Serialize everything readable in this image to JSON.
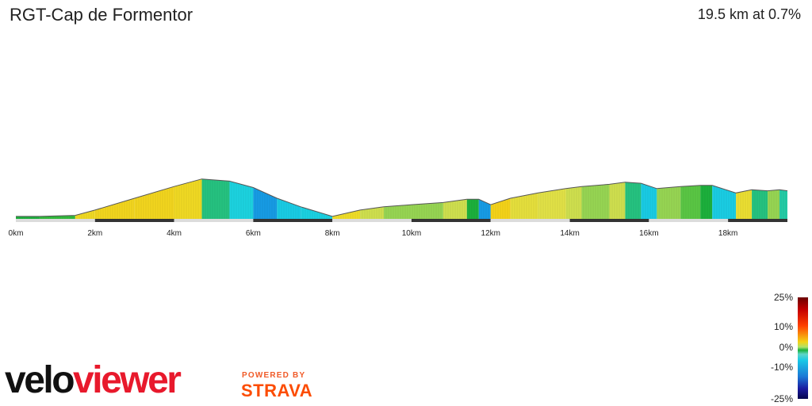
{
  "header": {
    "title": "RGT-Cap de Formentor",
    "summary": "19.5 km at 0.7%"
  },
  "legend": {
    "labels": [
      "25%",
      "10%",
      "0%",
      "-10%",
      "-25%"
    ]
  },
  "branding": {
    "logo_part1": "velo",
    "logo_part2": "viewer",
    "powered_by": "POWERED BY",
    "strava": "STRAVA"
  },
  "chart_data": {
    "type": "area",
    "title": "RGT-Cap de Formentor",
    "xlabel": "",
    "ylabel": "",
    "x_unit": "km",
    "distance_km": 19.5,
    "avg_gradient_pct": 0.7,
    "x_ticks": [
      "0km",
      "2km",
      "4km",
      "6km",
      "8km",
      "10km",
      "12km",
      "14km",
      "16km",
      "18km"
    ],
    "color_scale": {
      "min_pct": -25,
      "max_pct": 25,
      "labels": [
        "25%",
        "10%",
        "0%",
        "-10%",
        "-25%"
      ]
    },
    "profile": {
      "x_km": [
        0,
        0.6,
        1.5,
        2.0,
        3.0,
        4.0,
        4.7,
        5.4,
        6.0,
        6.6,
        7.2,
        8.0,
        8.7,
        9.3,
        10.0,
        10.8,
        11.4,
        11.7,
        12.0,
        12.5,
        13.2,
        13.9,
        14.3,
        15.0,
        15.4,
        15.8,
        16.2,
        16.8,
        17.3,
        17.6,
        18.2,
        18.6,
        19.0,
        19.3,
        19.5
      ],
      "elevation_m": [
        3,
        3,
        4,
        9,
        20,
        31,
        38,
        36,
        30,
        20,
        12,
        3,
        9,
        12,
        14,
        16,
        19,
        19,
        14,
        20,
        25,
        29,
        31,
        33,
        35,
        34,
        29,
        31,
        32,
        32,
        25,
        28,
        27,
        28,
        27
      ]
    },
    "segment_gradient_pct": [
      0,
      0.1,
      1,
      1.1,
      1.1,
      1,
      -0.3,
      -1,
      -1.7,
      -1.3,
      -1.1,
      0.9,
      0.5,
      0.3,
      0.3,
      0.5,
      0,
      -1.7,
      1.2,
      0.7,
      0.6,
      0.5,
      0.3,
      0.5,
      -0.3,
      -1.3,
      0.3,
      0.2,
      0,
      -1.2,
      0.8,
      -0.3,
      0.3,
      -0.5
    ]
  }
}
